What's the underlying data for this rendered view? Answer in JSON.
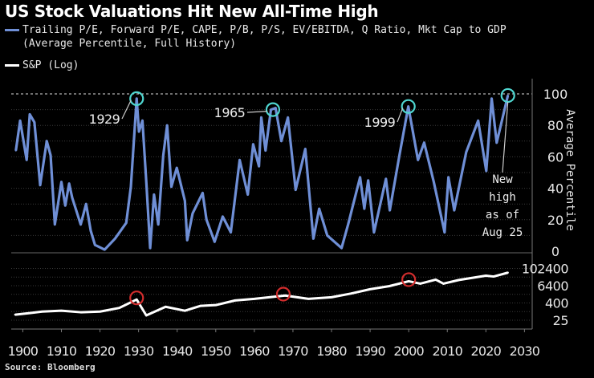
{
  "chart_data": [
    {
      "type": "line",
      "title": "US Stock Valuations Hit New All-Time High",
      "series": [
        {
          "name": "Trailing P/E, Forward P/E, CAPE, P/B, P/S, EV/EBITDA, Q Ratio, Mkt Cap to GDP (Average Percentile, Full History)",
          "color": "#6f8fd6",
          "x": [
            1898.2,
            1899.3,
            1901,
            1901.8,
            1903,
            1904.5,
            1906.2,
            1907.2,
            1908.3,
            1910,
            1911,
            1912,
            1912.8,
            1915,
            1916.4,
            1917.6,
            1918.7,
            1921.2,
            1923.9,
            1926.8,
            1928,
            1929.5,
            1930.1,
            1931,
            1932,
            1933,
            1934,
            1935.1,
            1936.4,
            1937.4,
            1938.5,
            1939.9,
            1942,
            1942.6,
            1944,
            1946.6,
            1947.6,
            1949.7,
            1951.8,
            1953.9,
            1956.2,
            1958.3,
            1959.7,
            1961.2,
            1961.8,
            1962.9,
            1964.3,
            1965.5,
            1967,
            1968.7,
            1970.7,
            1973.2,
            1975.3,
            1976.8,
            1978.9,
            1982.6,
            1984.3,
            1987.4,
            1988.5,
            1989.5,
            1991,
            1994.1,
            1995.1,
            1997.6,
            1999.9,
            2002.4,
            2004,
            2006.5,
            2009.3,
            2010.3,
            2011.8,
            2014.9,
            2018,
            2020.1,
            2021.5,
            2022.8,
            2025.7
          ],
          "y": [
            64,
            83,
            58,
            87,
            82,
            42,
            70,
            61,
            17,
            44,
            29,
            43,
            34,
            17,
            30,
            13,
            4,
            1,
            8,
            18,
            41,
            97,
            76,
            83,
            44,
            2,
            36,
            17,
            61,
            80,
            41,
            53,
            32,
            7,
            24,
            37,
            20,
            6,
            22,
            12,
            58,
            36,
            68,
            54,
            85,
            64,
            90,
            91,
            70,
            85,
            39,
            65,
            8,
            27,
            10,
            2,
            17,
            47,
            27,
            45,
            12,
            46,
            26,
            61,
            92,
            58,
            69,
            44,
            12,
            47,
            26,
            63,
            83,
            51,
            97,
            69,
            99
          ]
        }
      ],
      "xlim": [
        1897,
        2032
      ],
      "ylim": [
        0,
        100
      ],
      "ylabel": "Average Percentile",
      "yticks": [
        "0",
        "20",
        "40",
        "60",
        "80",
        "100"
      ],
      "reference_line": 100,
      "grid": true,
      "annotations": [
        {
          "label": "1929",
          "x": 1929.5,
          "y": 97
        },
        {
          "label": "1965",
          "x": 1964.8,
          "y": 90
        },
        {
          "label": "1999",
          "x": 1999.9,
          "y": 92
        },
        {
          "label": "New high as of Aug 25",
          "lines": [
            "New",
            "high",
            "as of",
            "Aug 25"
          ],
          "x": 2025.7,
          "y": 99
        }
      ],
      "highlight_color": "#4fd6d0"
    },
    {
      "type": "line",
      "series": [
        {
          "name": "S&P (Log)",
          "color": "#ffffff",
          "x": [
            1898,
            1902,
            1905,
            1910,
            1915,
            1920,
            1925,
            1929.5,
            1932,
            1937,
            1942,
            1946,
            1950,
            1955,
            1960,
            1968,
            1974,
            1980,
            1985,
            1990,
            1995,
            2000,
            2003,
            2007,
            2009,
            2013,
            2020,
            2022,
            2025.7
          ],
          "y": [
            61,
            80,
            100,
            115,
            90,
            100,
            180,
            697,
            54,
            217,
            115,
            250,
            284,
            600,
            776,
            1320,
            776,
            1000,
            1800,
            3630,
            6000,
            13100,
            8900,
            16900,
            8900,
            16000,
            32000,
            28000,
            52000
          ]
        }
      ],
      "yscale": "log",
      "yticks": [
        "25",
        "400",
        "6400",
        "102400"
      ],
      "highlights": [
        1929.5,
        1967.5,
        2000
      ],
      "highlight_color": "#d22d2d"
    }
  ],
  "xticks": [
    "1900",
    "1910",
    "1920",
    "1930",
    "1940",
    "1950",
    "1960",
    "1970",
    "1980",
    "1990",
    "2000",
    "2010",
    "2020",
    "2030"
  ],
  "legend": {
    "line1": "Trailing P/E, Forward P/E, CAPE, P/B, P/S, EV/EBITDA, Q Ratio, Mkt Cap to GDP",
    "line2": "(Average Percentile, Full History)",
    "sp": "S&P (Log)"
  },
  "source": "Source: Bloomberg"
}
